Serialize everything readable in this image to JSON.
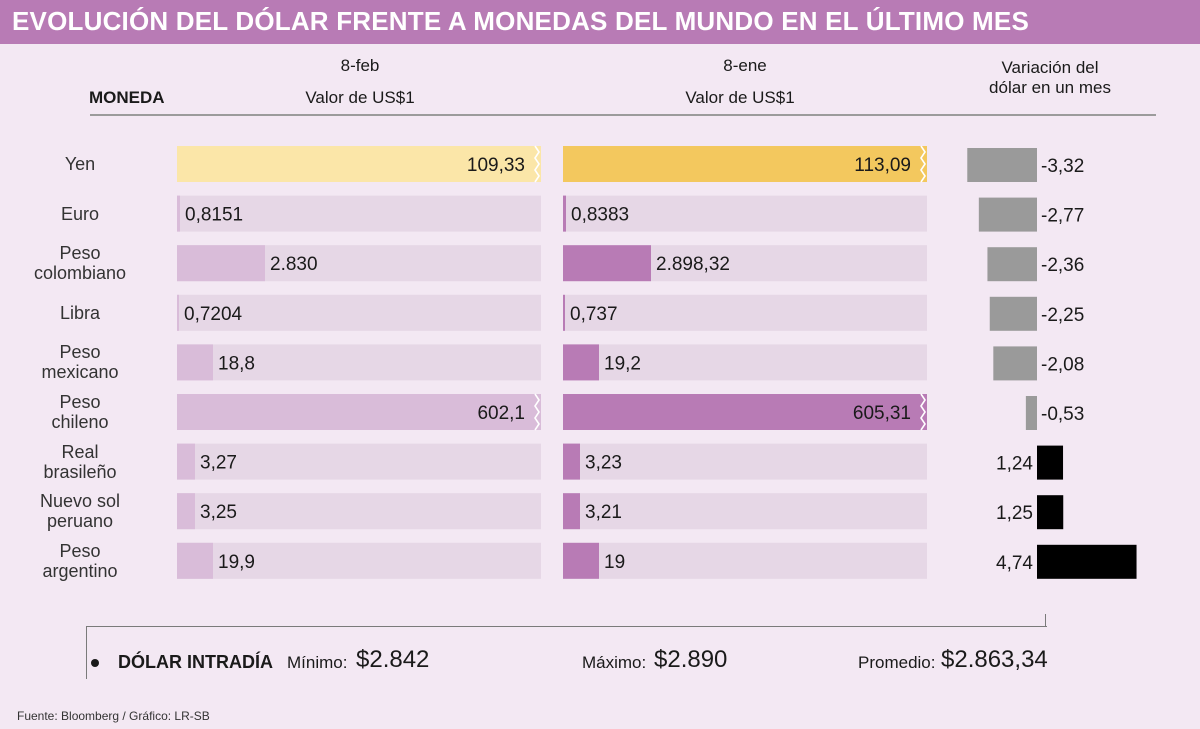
{
  "title": "EVOLUCIÓN DEL DÓLAR FRENTE A MONEDAS DEL MUNDO EN EL ÚLTIMO MES",
  "headers": {
    "currency": "MONEDA",
    "date_new": "8-feb",
    "value_new": "Valor de US$1",
    "date_old": "8-ene",
    "value_old": "Valor de US$1",
    "variation_line1": "Variación del",
    "variation_line2": "dólar en un mes"
  },
  "rows": [
    {
      "name": [
        "Yen"
      ],
      "feb_label": "109,33",
      "ene_label": "113,09",
      "var_label": "-3,32"
    },
    {
      "name": [
        "Euro"
      ],
      "feb_label": "0,8151",
      "ene_label": "0,8383",
      "var_label": "-2,77"
    },
    {
      "name": [
        "Peso",
        "colombiano"
      ],
      "feb_label": "2.830",
      "ene_label": "2.898,32",
      "var_label": "-2,36"
    },
    {
      "name": [
        "Libra"
      ],
      "feb_label": "0,7204",
      "ene_label": "0,737",
      "var_label": "-2,25"
    },
    {
      "name": [
        "Peso",
        "mexicano"
      ],
      "feb_label": "18,8",
      "ene_label": "19,2",
      "var_label": "-2,08"
    },
    {
      "name": [
        "Peso",
        "chileno"
      ],
      "feb_label": "602,1",
      "ene_label": "605,31",
      "var_label": "-0,53"
    },
    {
      "name": [
        "Real",
        "brasileño"
      ],
      "feb_label": "3,27",
      "ene_label": "3,23",
      "var_label": "1,24"
    },
    {
      "name": [
        "Nuevo sol",
        "peruano"
      ],
      "feb_label": "3,25",
      "ene_label": "3,21",
      "var_label": "1,25"
    },
    {
      "name": [
        "Peso",
        "argentino"
      ],
      "feb_label": "19,9",
      "ene_label": "19",
      "var_label": "4,74"
    }
  ],
  "chart_data": {
    "type": "bar",
    "title": "EVOLUCIÓN DEL DÓLAR FRENTE A MONEDAS DEL MUNDO EN EL ÚLTIMO MES",
    "categories": [
      "Yen",
      "Euro",
      "Peso colombiano",
      "Libra",
      "Peso mexicano",
      "Peso chileno",
      "Real brasileño",
      "Nuevo sol peruano",
      "Peso argentino"
    ],
    "series": [
      {
        "name": "8-feb Valor de US$1",
        "values": [
          109.33,
          0.8151,
          2830,
          0.7204,
          18.8,
          602.1,
          3.27,
          3.25,
          19.9
        ],
        "truncated": [
          true,
          false,
          false,
          false,
          false,
          true,
          false,
          false,
          false
        ]
      },
      {
        "name": "8-ene Valor de US$1",
        "values": [
          113.09,
          0.8383,
          2898.32,
          0.737,
          19.2,
          605.31,
          3.23,
          3.21,
          19
        ],
        "truncated": [
          true,
          false,
          false,
          false,
          false,
          true,
          false,
          false,
          false
        ]
      },
      {
        "name": "Variación del dólar en un mes",
        "values": [
          -3.32,
          -2.77,
          -2.36,
          -2.25,
          -2.08,
          -0.53,
          1.24,
          1.25,
          4.74
        ]
      }
    ],
    "variation_axis_range": [
      -3.32,
      4.74
    ]
  },
  "colors": {
    "title_bg": "#b87bb5",
    "background": "#f3e8f3",
    "track": "#e6d7e6",
    "feb_bar": "#d9bcd9",
    "ene_bar": "#b87bb5",
    "yen_feb": "#fbe6a8",
    "yen_ene": "#f3c85e",
    "var_negative": "#9a9a9a",
    "var_positive": "#000000"
  },
  "footer": {
    "label": "DÓLAR INTRADÍA",
    "min_label": "Mínimo:",
    "min_value": "$2.842",
    "max_label": "Máximo:",
    "max_value": "$2.890",
    "avg_label": "Promedio:",
    "avg_value": "$2.863,34"
  },
  "source": "Fuente:  Bloomberg / Gráfico: LR-SB"
}
